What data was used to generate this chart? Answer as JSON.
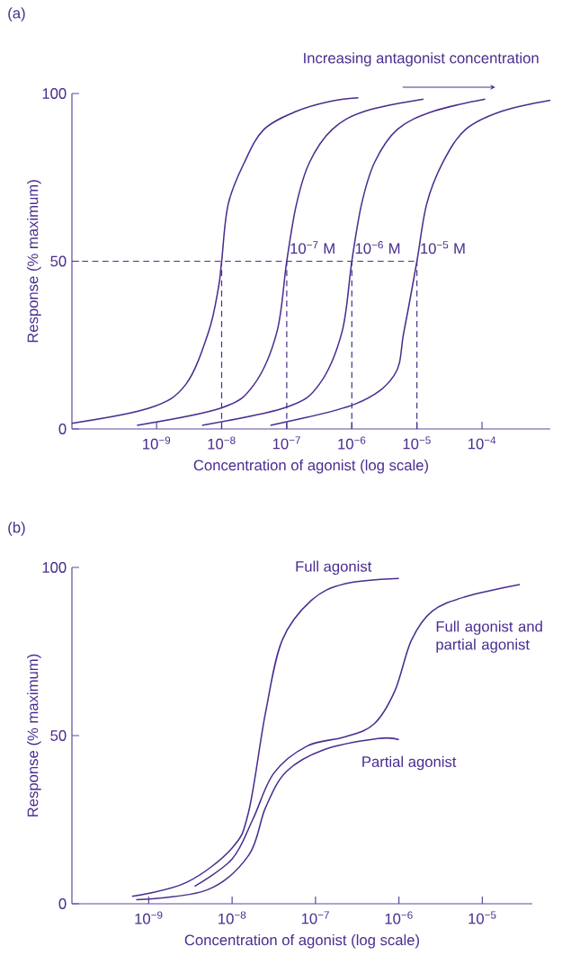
{
  "chart_data": [
    {
      "type": "line",
      "xlabel": "Concentration of agonist (log scale)",
      "ylabel": "Response (% maximum)",
      "log": "x",
      "xlim": [
        5.01e-11,
        0.00112
      ],
      "ylim": [
        0,
        100
      ],
      "xticks": [
        {
          "value": 1e-09,
          "label": "10$^{−9}$"
        },
        {
          "value": 1e-08,
          "label": "10$^{−8}$"
        },
        {
          "value": 1e-07,
          "label": "10$^{−7}$"
        },
        {
          "value": 1e-06,
          "label": "10$^{−6}$"
        },
        {
          "value": 1e-05,
          "label": "10$^{−5}$"
        },
        {
          "value": 0.0001,
          "label": "10$^{−4}$"
        }
      ],
      "yticks": [
        0,
        50,
        100
      ],
      "series": [
        {
          "color": "#4a2d8f",
          "x": [
            5.01e-11,
            7.94e-10,
            2.82e-09,
            6.31e-09,
            8.91e-09,
            1e-08,
            1.26e-08,
            2.24e-08,
            4.47e-08,
            1.41e-07,
            4.47e-07,
            1.26e-06
          ],
          "values": [
            1.7,
            6.3,
            13.3,
            29,
            42,
            50,
            67,
            79.5,
            89.3,
            94.7,
            97.6,
            98.7
          ]
        },
        {
          "name": "10$^{−7}$ M",
          "color": "#4a2d8f",
          "x": [
            5.01e-10,
            1e-08,
            3.16e-08,
            7.08e-08,
            1e-07,
            1.41e-07,
            2.24e-07,
            5.01e-07,
            1.58e-06,
            1.26e-05
          ],
          "values": [
            1.1,
            6.3,
            13.3,
            29,
            50,
            67,
            79.5,
            89.3,
            94.7,
            98.3
          ]
        },
        {
          "name": "10$^{−6}$ M",
          "color": "#4a2d8f",
          "x": [
            5.01e-09,
            1e-07,
            3.16e-07,
            7.08e-07,
            1e-06,
            1.41e-06,
            2.24e-06,
            5.01e-06,
            1.78e-05,
            0.000112
          ],
          "values": [
            1.1,
            6.5,
            13.3,
            29,
            50,
            67,
            79.5,
            89.3,
            94.7,
            98.3
          ]
        },
        {
          "name": "10$^{−5}$ M",
          "color": "#4a2d8f",
          "x": [
            5.62e-08,
            1.12e-06,
            4.47e-06,
            6.31e-06,
            1e-05,
            1.41e-05,
            2.51e-05,
            5.62e-05,
            0.0002,
            0.00112
          ],
          "values": [
            1.1,
            7.4,
            16,
            29,
            50,
            67,
            79.5,
            89.3,
            94.7,
            98.0
          ]
        }
      ],
      "ref_lines": [
        {
          "axis": "y",
          "value": 50,
          "line_style": "dashed"
        },
        {
          "axis": "x",
          "value": 1e-08,
          "line_style": "dashed"
        },
        {
          "axis": "x",
          "value": 1e-07,
          "line_style": "dashed"
        },
        {
          "axis": "x",
          "value": 1e-06,
          "line_style": "dashed"
        },
        {
          "axis": "x",
          "value": 1e-05,
          "line_style": "dashed"
        }
      ],
      "annotations": [
        "(a)",
        "Increasing antagonist concentration"
      ]
    },
    {
      "type": "line",
      "xlabel": "Concentration of agonist (log scale)",
      "ylabel": "Response (% maximum)",
      "log": "x",
      "xlim": [
        1.2e-10,
        3.98e-05
      ],
      "ylim": [
        0,
        100
      ],
      "xticks": [
        {
          "value": 1e-09,
          "label": "10$^{−9}$"
        },
        {
          "value": 1e-08,
          "label": "10$^{−8}$"
        },
        {
          "value": 1e-07,
          "label": "10$^{−7}$"
        },
        {
          "value": 1e-06,
          "label": "10$^{−6}$"
        },
        {
          "value": 1e-05,
          "label": "10$^{−5}$"
        }
      ],
      "yticks": [
        0,
        50,
        100
      ],
      "series": [
        {
          "name": "Full agonist",
          "color": "#4a2d8f",
          "x": [
            6.31e-10,
            2.82e-09,
            1e-08,
            1.58e-08,
            2.51e-08,
            3.98e-08,
            8.91e-08,
            2.24e-07,
            1e-06
          ],
          "values": [
            2.2,
            6.3,
            16.6,
            27.4,
            56.7,
            78.3,
            90.2,
            95.1,
            96.7
          ]
        },
        {
          "name": "Partial agonist",
          "color": "#4a2d8f",
          "x": [
            7.08e-10,
            5.01e-09,
            1.58e-08,
            2.51e-08,
            4.47e-08,
            1.26e-07,
            5.62e-07,
            1e-06
          ],
          "values": [
            1.2,
            4.1,
            14.4,
            28.5,
            39.3,
            45.8,
            49.1,
            48.8
          ]
        },
        {
          "name": "Full agonist and partial agonist",
          "color": "#4a2d8f",
          "x": [
            3.55e-09,
            1e-08,
            1.78e-08,
            3.16e-08,
            7.94e-08,
            2.24e-07,
            5.01e-07,
            8.91e-07,
            1.41e-06,
            2.51e-06,
            6.31e-06,
            2.82e-05
          ],
          "values": [
            5.2,
            13.3,
            25.2,
            38.8,
            46.9,
            49.6,
            53.4,
            63.2,
            78.3,
            87.0,
            91.3,
            94.9
          ]
        }
      ],
      "annotations": [
        "(b)"
      ]
    }
  ]
}
